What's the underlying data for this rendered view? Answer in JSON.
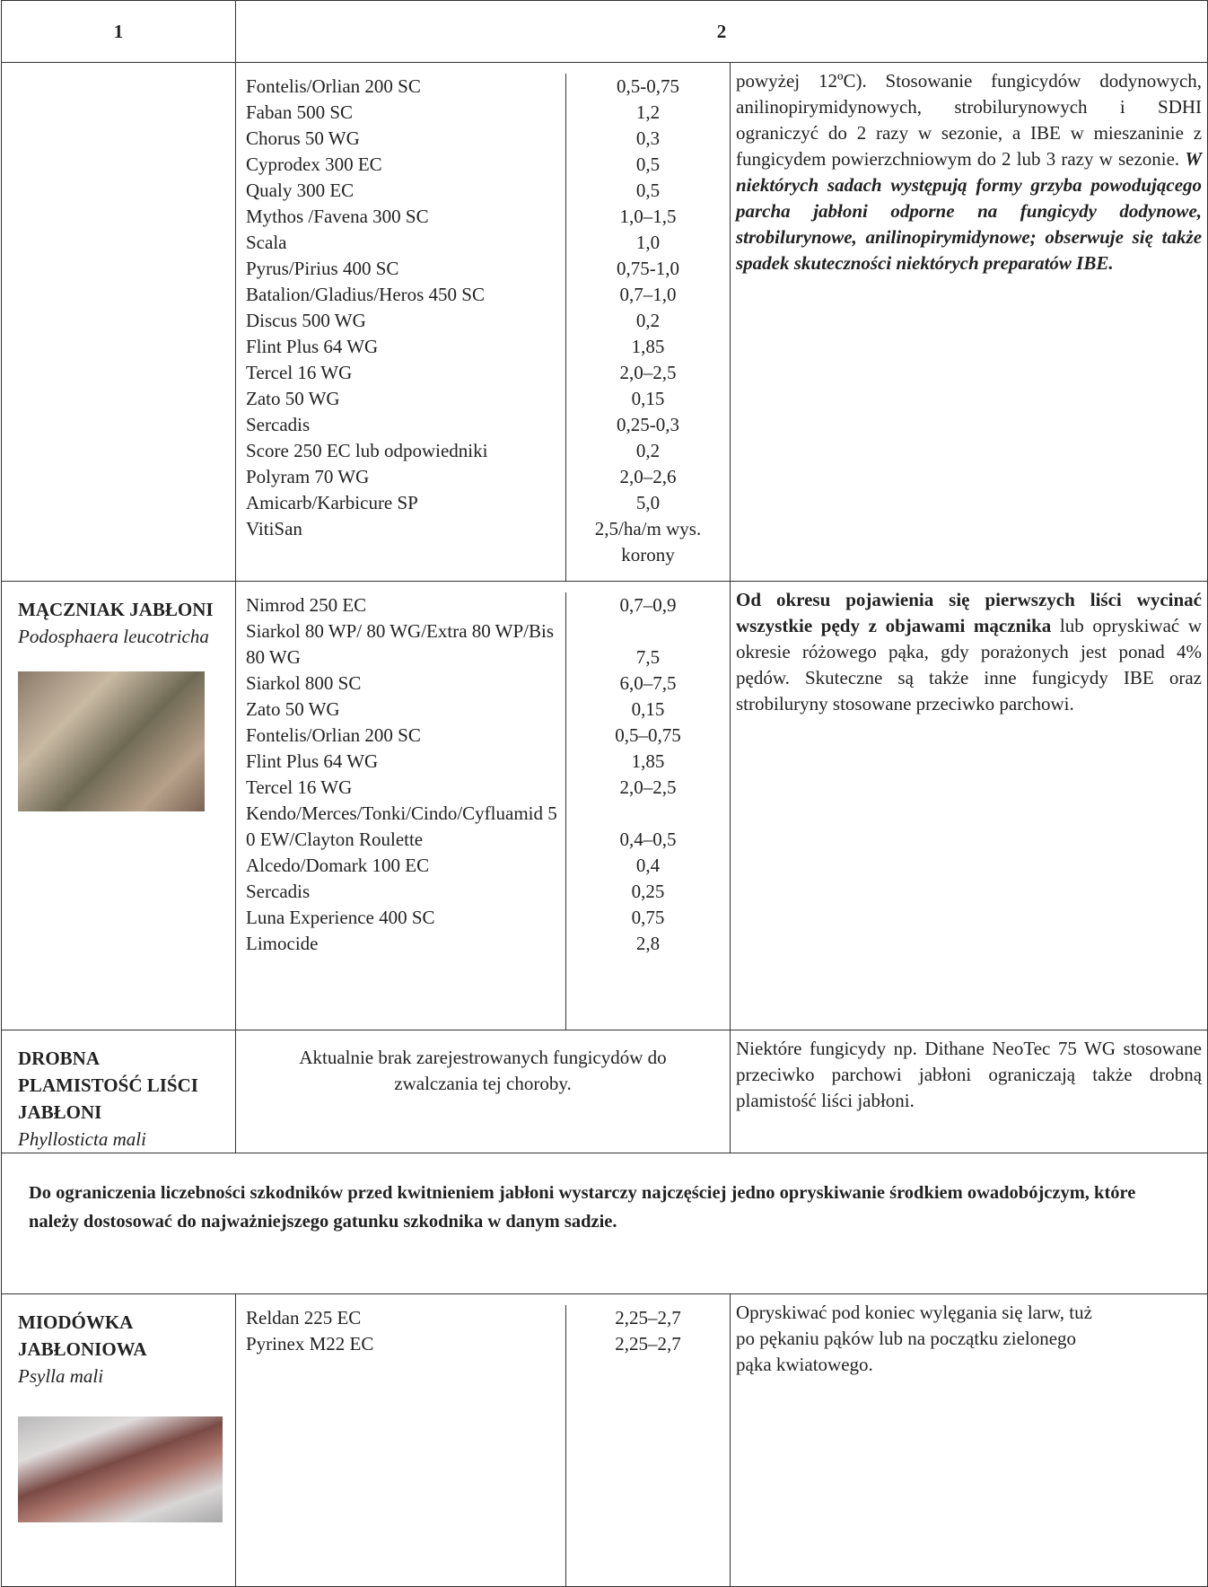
{
  "header": {
    "col1": "1",
    "col2": "2"
  },
  "rows": [
    {
      "products": [
        {
          "name": "Fontelis/Orlian 200 SC",
          "dose": "0,5-0,75"
        },
        {
          "name": "Faban 500 SC",
          "dose": "1,2"
        },
        {
          "name": "Chorus 50 WG",
          "dose": "0,3"
        },
        {
          "name": "Cyprodex 300 EC",
          "dose": "0,5"
        },
        {
          "name": "Qualy 300 EC",
          "dose": "0,5"
        },
        {
          "name": "Mythos /Favena 300 SC",
          "dose": "1,0–1,5"
        },
        {
          "name": "Scala",
          "dose": "1,0"
        },
        {
          "name": "Pyrus/Pirius 400 SC",
          "dose": "0,75-1,0"
        },
        {
          "name": "Batalion/Gladius/Heros 450 SC",
          "dose": "0,7–1,0"
        },
        {
          "name": "Discus 500 WG",
          "dose": "0,2"
        },
        {
          "name": "Flint Plus 64 WG",
          "dose": "1,85"
        },
        {
          "name": "Tercel 16 WG",
          "dose": "2,0–2,5"
        },
        {
          "name": "Zato 50 WG",
          "dose": "0,15"
        },
        {
          "name": "Sercadis",
          "dose": "0,25-0,3"
        },
        {
          "name": "Score 250 EC lub odpowiedniki",
          "dose": "0,2"
        },
        {
          "name": "Polyram 70 WG",
          "dose": "2,0–2,6"
        },
        {
          "name": "Amicarb/Karbicure SP",
          "dose": "5,0"
        },
        {
          "name": "VitiSan",
          "dose": "2,5/ha/m wys. korony"
        }
      ],
      "note": "powyżej 12ºC). Stosowanie fungicydów dodynowych, anilinopirymidynowych, strobilurynowych i SDHI ograniczyć do 2 razy w sezonie, a IBE w mieszaninie z fungicydem powierzchniowym do 2 lub 3 razy w sezonie.",
      "note_emphasis": "W niektórych sadach występują formy grzyba powodującego parcha jabłoni odporne na fungicydy dodynowe, strobilurynowe, anilinopirymidynowe; obserwuje się także spadek skuteczności niektórych preparatów IBE."
    },
    {
      "name": "MĄCZNIAK JABŁONI",
      "latin": "Podosphaera leucotricha",
      "products": [
        {
          "name": "Nimrod 250 EC",
          "dose": "0,7–0,9"
        },
        {
          "name": "Siarkol 80 WP/ 80 WG/Extra 80 WP/Bis 80 WG",
          "dose": "7,5"
        },
        {
          "name": "Siarkol 800 SC",
          "dose": "6,0–7,5"
        },
        {
          "name": "Zato 50 WG",
          "dose": "0,15"
        },
        {
          "name": "Fontelis/Orlian 200 SC",
          "dose": "0,5–0,75"
        },
        {
          "name": "Flint Plus 64 WG",
          "dose": "1,85"
        },
        {
          "name": "Tercel 16 WG",
          "dose": "2,0–2,5"
        },
        {
          "name": "Kendo/Merces/Tonki/Cindo/Cyfluamid 50 EW/Clayton Roulette",
          "dose": "0,4–0,5"
        },
        {
          "name": "Alcedo/Domark 100 EC",
          "dose": "0,4"
        },
        {
          "name": "Sercadis",
          "dose": "0,25"
        },
        {
          "name": "Luna Experience 400 SC",
          "dose": "0,75"
        },
        {
          "name": "Limocide",
          "dose": "2,8"
        }
      ],
      "note_emphasis": "Od okresu pojawienia się pierwszych liści wycinać wszystkie pędy z objawami mącznika",
      "note": "lub opryskiwać w okresie różowego pąka, gdy porażonych jest ponad 4% pędów. Skuteczne są także inne fungicydy IBE oraz strobiluryny stosowane przeciwko parchowi."
    },
    {
      "name": "DROBNA PLAMISTOŚĆ LIŚCI JABŁONI",
      "latin": "Phyllosticta mali",
      "products_text": "Aktualnie brak zarejestrowanych fungicydów do zwalczania tej choroby.",
      "note": "Niektóre fungicydy np. Dithane NeoTec 75 WG stosowane przeciwko parchowi jabłoni ograniczają także drobną plamistość liści jabłoni."
    },
    {
      "statement": "Do ograniczenia liczebności szkodników przed kwitnieniem jabłoni wystarczy najczęściej jedno opryskiwanie środkiem owadobójczym, które należy dostosować do najważniejszego gatunku szkodnika w danym sadzie."
    },
    {
      "name": "MIODÓWKA JABŁONIOWA",
      "latin": "Psylla mali",
      "products": [
        {
          "name": "Reldan 225 EC",
          "dose": "2,25–2,7"
        },
        {
          "name": "Pyrinex M22 EC",
          "dose": "2,25–2,7"
        }
      ],
      "note": "Opryskiwać pod koniec wylęgania się larw, tuż po pękaniu pąków lub na początku zielonego pąka kwiatowego."
    }
  ]
}
